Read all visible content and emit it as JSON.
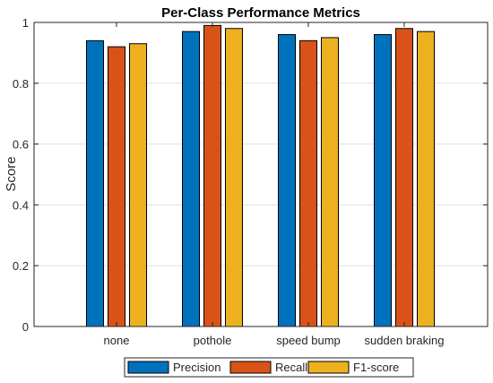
{
  "chart_data": {
    "type": "bar",
    "title": "Per-Class Performance Metrics",
    "xlabel": "",
    "ylabel": "Score",
    "categories": [
      "none",
      "pothole",
      "speed bump",
      "sudden braking"
    ],
    "series": [
      {
        "name": "Precision",
        "color": "#0072BD",
        "values": [
          0.94,
          0.97,
          0.96,
          0.96
        ]
      },
      {
        "name": "Recall",
        "color": "#D95319",
        "values": [
          0.92,
          0.99,
          0.94,
          0.98
        ]
      },
      {
        "name": "F1-score",
        "color": "#EDB120",
        "values": [
          0.93,
          0.98,
          0.95,
          0.97
        ]
      }
    ],
    "ylim": [
      0,
      1
    ],
    "yticks": [
      0,
      0.2,
      0.4,
      0.6,
      0.8,
      1
    ],
    "ytick_labels": [
      "0",
      "0.2",
      "0.4",
      "0.6",
      "0.8",
      "1"
    ],
    "grid": true,
    "legend_position": "bottom"
  }
}
